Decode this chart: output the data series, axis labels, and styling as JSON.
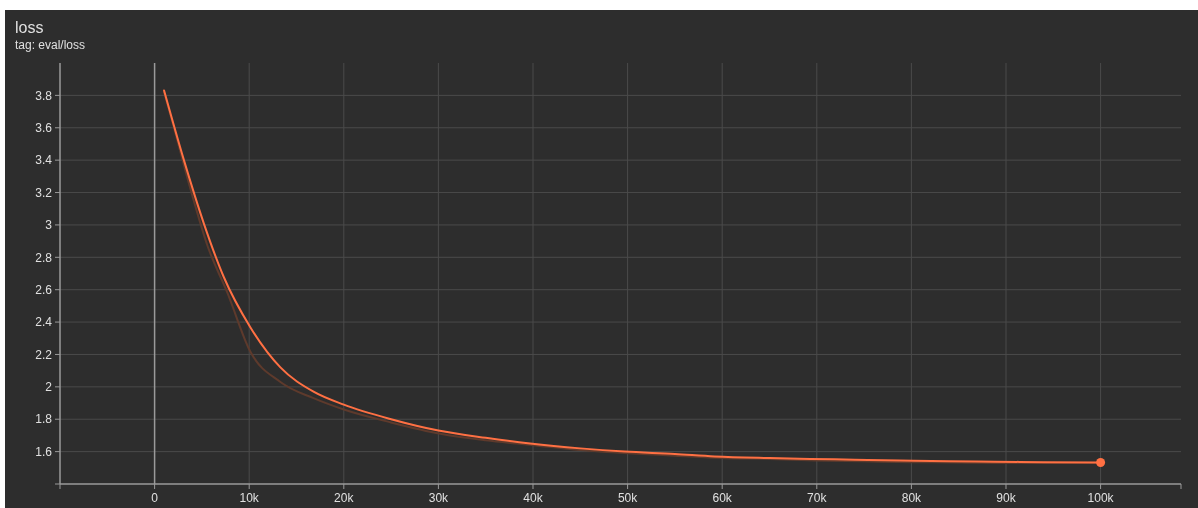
{
  "chart_data": {
    "type": "line",
    "title": "loss",
    "subtitle": "tag: eval/loss",
    "xlim": [
      -10000,
      108500
    ],
    "ylim": [
      1.4,
      4.0
    ],
    "xticks": [
      0,
      {
        "value": 10000,
        "label": "10k"
      },
      {
        "value": 20000,
        "label": "20k"
      },
      {
        "value": 30000,
        "label": "30k"
      },
      {
        "value": 40000,
        "label": "40k"
      },
      {
        "value": 50000,
        "label": "50k"
      },
      {
        "value": 60000,
        "label": "60k"
      },
      {
        "value": 70000,
        "label": "70k"
      },
      {
        "value": 80000,
        "label": "80k"
      },
      {
        "value": 90000,
        "label": "90k"
      },
      {
        "value": 100000,
        "label": "100k"
      }
    ],
    "yticks": [
      1.6,
      1.8,
      2,
      2.2,
      2.4,
      2.6,
      2.8,
      3,
      3.2,
      3.4,
      3.6,
      3.8
    ],
    "grid": true,
    "marker": "none",
    "line_style": "solid",
    "series": [
      {
        "color": "#5e3a2c",
        "x": [
          1000,
          2000,
          3800,
          5600,
          7700,
          10100,
          13300,
          16800,
          20000,
          25000,
          30200,
          35000,
          40000,
          45000,
          50000,
          55000,
          60000,
          65000,
          70000,
          75000,
          80000,
          85000,
          90000,
          100000
        ],
        "values": [
          3.82,
          3.61,
          3.22,
          2.87,
          2.58,
          2.22,
          2.03,
          1.93,
          1.86,
          1.78,
          1.71,
          1.67,
          1.64,
          1.61,
          1.59,
          1.575,
          1.56,
          1.555,
          1.545,
          1.54,
          1.535,
          1.533,
          1.53,
          1.53
        ]
      },
      {
        "color": "#ff7043",
        "x": [
          1000,
          3100,
          5200,
          7300,
          10100,
          13300,
          16800,
          20000,
          25000,
          30000,
          35000,
          39700,
          45000,
          49700,
          55000,
          59200,
          65000,
          69300,
          74000,
          78800,
          84000,
          88800,
          94000,
          100000
        ],
        "values": [
          3.83,
          3.4,
          3.01,
          2.68,
          2.37,
          2.12,
          1.97,
          1.89,
          1.8,
          1.73,
          1.685,
          1.65,
          1.62,
          1.6,
          1.585,
          1.57,
          1.56,
          1.555,
          1.55,
          1.545,
          1.54,
          1.538,
          1.535,
          1.533
        ]
      },
      {
        "type": "scatter",
        "marker": "circle",
        "color": "#ff7043",
        "x": [
          100000
        ],
        "values": [
          1.533
        ]
      }
    ]
  }
}
